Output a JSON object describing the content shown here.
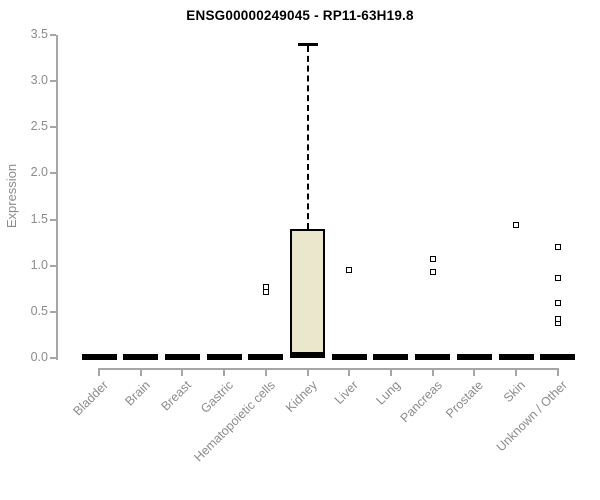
{
  "chart_data": {
    "type": "boxplot",
    "title": "ENSG00000249045 - RP11-63H19.8",
    "ylabel": "Expression",
    "xlabel": "",
    "ylim": [
      0,
      3.5
    ],
    "ytick_labels": [
      "0.0",
      "0.5",
      "1.0",
      "1.5",
      "2.0",
      "2.5",
      "3.0",
      "3.5"
    ],
    "grid": false,
    "legend": false,
    "categories": [
      "Bladder",
      "Brain",
      "Breast",
      "Gastric",
      "Hematopoietic cells",
      "Kidney",
      "Liver",
      "Lung",
      "Pancreas",
      "Prostate",
      "Skin",
      "Unknown / Other"
    ],
    "boxes": [
      {
        "category": "Bladder",
        "median": 0,
        "q1": 0,
        "q3": 0,
        "whisker_low": 0,
        "whisker_high": 0,
        "outliers": []
      },
      {
        "category": "Brain",
        "median": 0,
        "q1": 0,
        "q3": 0,
        "whisker_low": 0,
        "whisker_high": 0,
        "outliers": []
      },
      {
        "category": "Breast",
        "median": 0,
        "q1": 0,
        "q3": 0,
        "whisker_low": 0,
        "whisker_high": 0,
        "outliers": []
      },
      {
        "category": "Gastric",
        "median": 0,
        "q1": 0,
        "q3": 0,
        "whisker_low": 0,
        "whisker_high": 0,
        "outliers": []
      },
      {
        "category": "Hematopoietic cells",
        "median": 0,
        "q1": 0,
        "q3": 0,
        "whisker_low": 0,
        "whisker_high": 0,
        "outliers": [
          0.72,
          0.77
        ]
      },
      {
        "category": "Kidney",
        "median": 0.02,
        "q1": 0.02,
        "q3": 1.4,
        "whisker_low": 0.02,
        "whisker_high": 3.4,
        "outliers": []
      },
      {
        "category": "Liver",
        "median": 0,
        "q1": 0,
        "q3": 0,
        "whisker_low": 0,
        "whisker_high": 0,
        "outliers": [
          0.95
        ]
      },
      {
        "category": "Lung",
        "median": 0,
        "q1": 0,
        "q3": 0,
        "whisker_low": 0,
        "whisker_high": 0,
        "outliers": []
      },
      {
        "category": "Pancreas",
        "median": 0,
        "q1": 0,
        "q3": 0,
        "whisker_low": 0,
        "whisker_high": 0,
        "outliers": [
          0.93,
          1.07
        ]
      },
      {
        "category": "Prostate",
        "median": 0,
        "q1": 0,
        "q3": 0,
        "whisker_low": 0,
        "whisker_high": 0,
        "outliers": []
      },
      {
        "category": "Skin",
        "median": 0,
        "q1": 0,
        "q3": 0,
        "whisker_low": 0,
        "whisker_high": 0,
        "outliers": [
          1.44
        ]
      },
      {
        "category": "Unknown / Other",
        "median": 0,
        "q1": 0,
        "q3": 0,
        "whisker_low": 0,
        "whisker_high": 0,
        "outliers": [
          0.38,
          0.42,
          0.6,
          0.87,
          1.2
        ]
      }
    ],
    "colors": {
      "box_fill": "#ebe7cc",
      "box_stroke": "#000000",
      "axis": "#a6a6a6",
      "text": "#8c8c8c",
      "title": "#000000",
      "background": "#ffffff"
    }
  }
}
